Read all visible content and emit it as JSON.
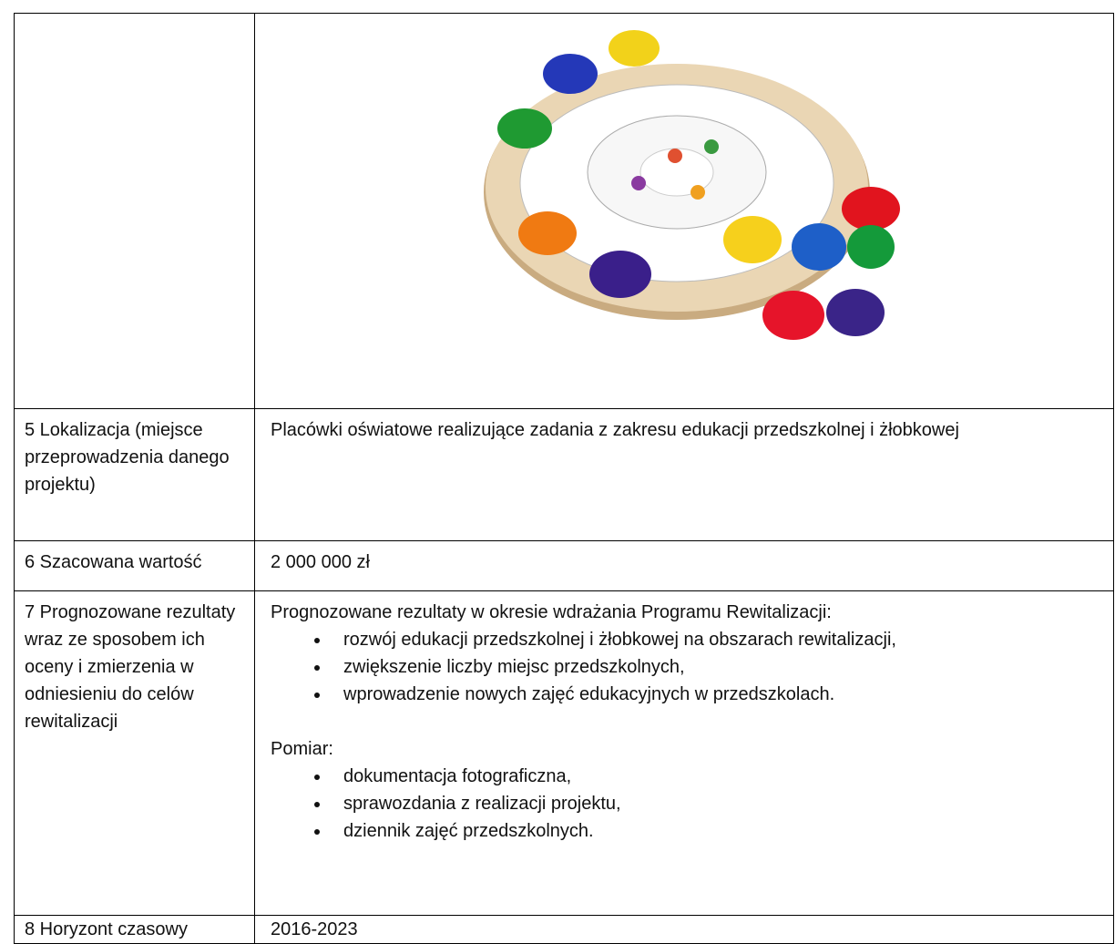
{
  "table": {
    "rows": [
      {
        "label": "5 Lokalizacja (miejsce przeprowadzenia danego projektu)",
        "content": "Placówki oświatowe realizujące zadania z zakresu edukacji przedszkolnej i żłobkowej"
      },
      {
        "label": "6 Szacowana wartość",
        "content": "2 000 000 zł"
      },
      {
        "label": "7 Prognozowane rezultaty wraz ze sposobem ich oceny i zmierzenia w odniesieniu do celów rewitalizacji",
        "intro": "Prognozowane rezultaty w okresie wdrażania Programu Rewitalizacji:",
        "bullets": [
          "rozwój edukacji przedszkolnej i żłobkowej na obszarach rewitalizacji,",
          "zwiększenie liczby miejsc przedszkolnych,",
          "wprowadzenie nowych zajęć edukacyjnych w przedszkolach."
        ],
        "measure_title": "Pomiar:",
        "measure_bullets": [
          "dokumentacja fotograficzna,",
          "sprawozdania z realizacji projektu,",
          "dziennik zajęć przedszkolnych."
        ]
      },
      {
        "label": "8 Horyzont czasowy",
        "content": "2016-2023"
      }
    ]
  }
}
